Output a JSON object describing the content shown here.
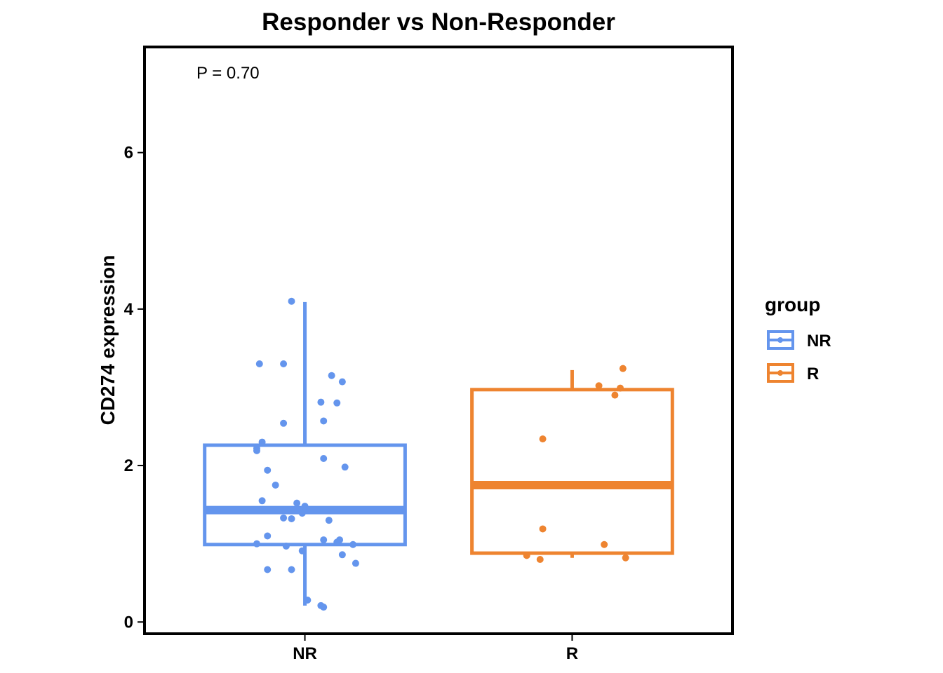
{
  "chart_data": {
    "type": "box",
    "title": "Responder vs Non-Responder",
    "xlabel": "",
    "ylabel": "CD274 expression",
    "ylim": [
      -0.15,
      7.35
    ],
    "y_ticks": [
      0,
      2,
      4,
      6
    ],
    "categories": [
      "NR",
      "R"
    ],
    "annotation": "P = 0.70",
    "grid": false,
    "legend": {
      "title": "group",
      "position": "right",
      "entries": [
        "NR",
        "R"
      ]
    },
    "colors": {
      "NR": "#6495ED",
      "R": "#EE8430"
    },
    "boxes": [
      {
        "group": "NR",
        "whisker_low": 0.21,
        "q1": 0.99,
        "median": 1.43,
        "q3": 2.26,
        "whisker_high": 4.09
      },
      {
        "group": "R",
        "whisker_low": 0.82,
        "q1": 0.88,
        "median": 1.75,
        "q3": 2.97,
        "whisker_high": 3.22
      }
    ],
    "points": [
      {
        "group": "NR",
        "values": [
          {
            "x": 0.95,
            "y": 4.1
          },
          {
            "x": 0.83,
            "y": 3.3
          },
          {
            "x": 0.92,
            "y": 3.3
          },
          {
            "x": 1.1,
            "y": 3.15
          },
          {
            "x": 1.14,
            "y": 3.07
          },
          {
            "x": 1.06,
            "y": 2.81
          },
          {
            "x": 1.12,
            "y": 2.8
          },
          {
            "x": 1.07,
            "y": 2.57
          },
          {
            "x": 0.92,
            "y": 2.54
          },
          {
            "x": 0.84,
            "y": 2.3
          },
          {
            "x": 0.82,
            "y": 2.22
          },
          {
            "x": 0.82,
            "y": 2.19
          },
          {
            "x": 1.07,
            "y": 2.09
          },
          {
            "x": 1.15,
            "y": 1.98
          },
          {
            "x": 0.86,
            "y": 1.94
          },
          {
            "x": 0.89,
            "y": 1.75
          },
          {
            "x": 0.84,
            "y": 1.55
          },
          {
            "x": 0.97,
            "y": 1.52
          },
          {
            "x": 1.0,
            "y": 1.48
          },
          {
            "x": 0.98,
            "y": 1.42
          },
          {
            "x": 0.99,
            "y": 1.39
          },
          {
            "x": 0.92,
            "y": 1.33
          },
          {
            "x": 0.95,
            "y": 1.32
          },
          {
            "x": 1.09,
            "y": 1.3
          },
          {
            "x": 0.86,
            "y": 1.1
          },
          {
            "x": 1.07,
            "y": 1.05
          },
          {
            "x": 1.13,
            "y": 1.05
          },
          {
            "x": 1.12,
            "y": 1.02
          },
          {
            "x": 0.82,
            "y": 1.0
          },
          {
            "x": 1.18,
            "y": 0.99
          },
          {
            "x": 0.93,
            "y": 0.97
          },
          {
            "x": 0.99,
            "y": 0.91
          },
          {
            "x": 1.14,
            "y": 0.86
          },
          {
            "x": 1.19,
            "y": 0.75
          },
          {
            "x": 0.86,
            "y": 0.67
          },
          {
            "x": 0.95,
            "y": 0.67
          },
          {
            "x": 1.01,
            "y": 0.28
          },
          {
            "x": 1.06,
            "y": 0.21
          },
          {
            "x": 1.07,
            "y": 0.19
          }
        ]
      },
      {
        "group": "R",
        "values": [
          {
            "x": 2.19,
            "y": 3.24
          },
          {
            "x": 2.1,
            "y": 3.02
          },
          {
            "x": 2.18,
            "y": 2.99
          },
          {
            "x": 2.16,
            "y": 2.9
          },
          {
            "x": 1.89,
            "y": 2.34
          },
          {
            "x": 1.89,
            "y": 1.19
          },
          {
            "x": 2.12,
            "y": 0.99
          },
          {
            "x": 1.83,
            "y": 0.85
          },
          {
            "x": 1.88,
            "y": 0.8
          },
          {
            "x": 2.2,
            "y": 0.82
          }
        ]
      }
    ]
  }
}
